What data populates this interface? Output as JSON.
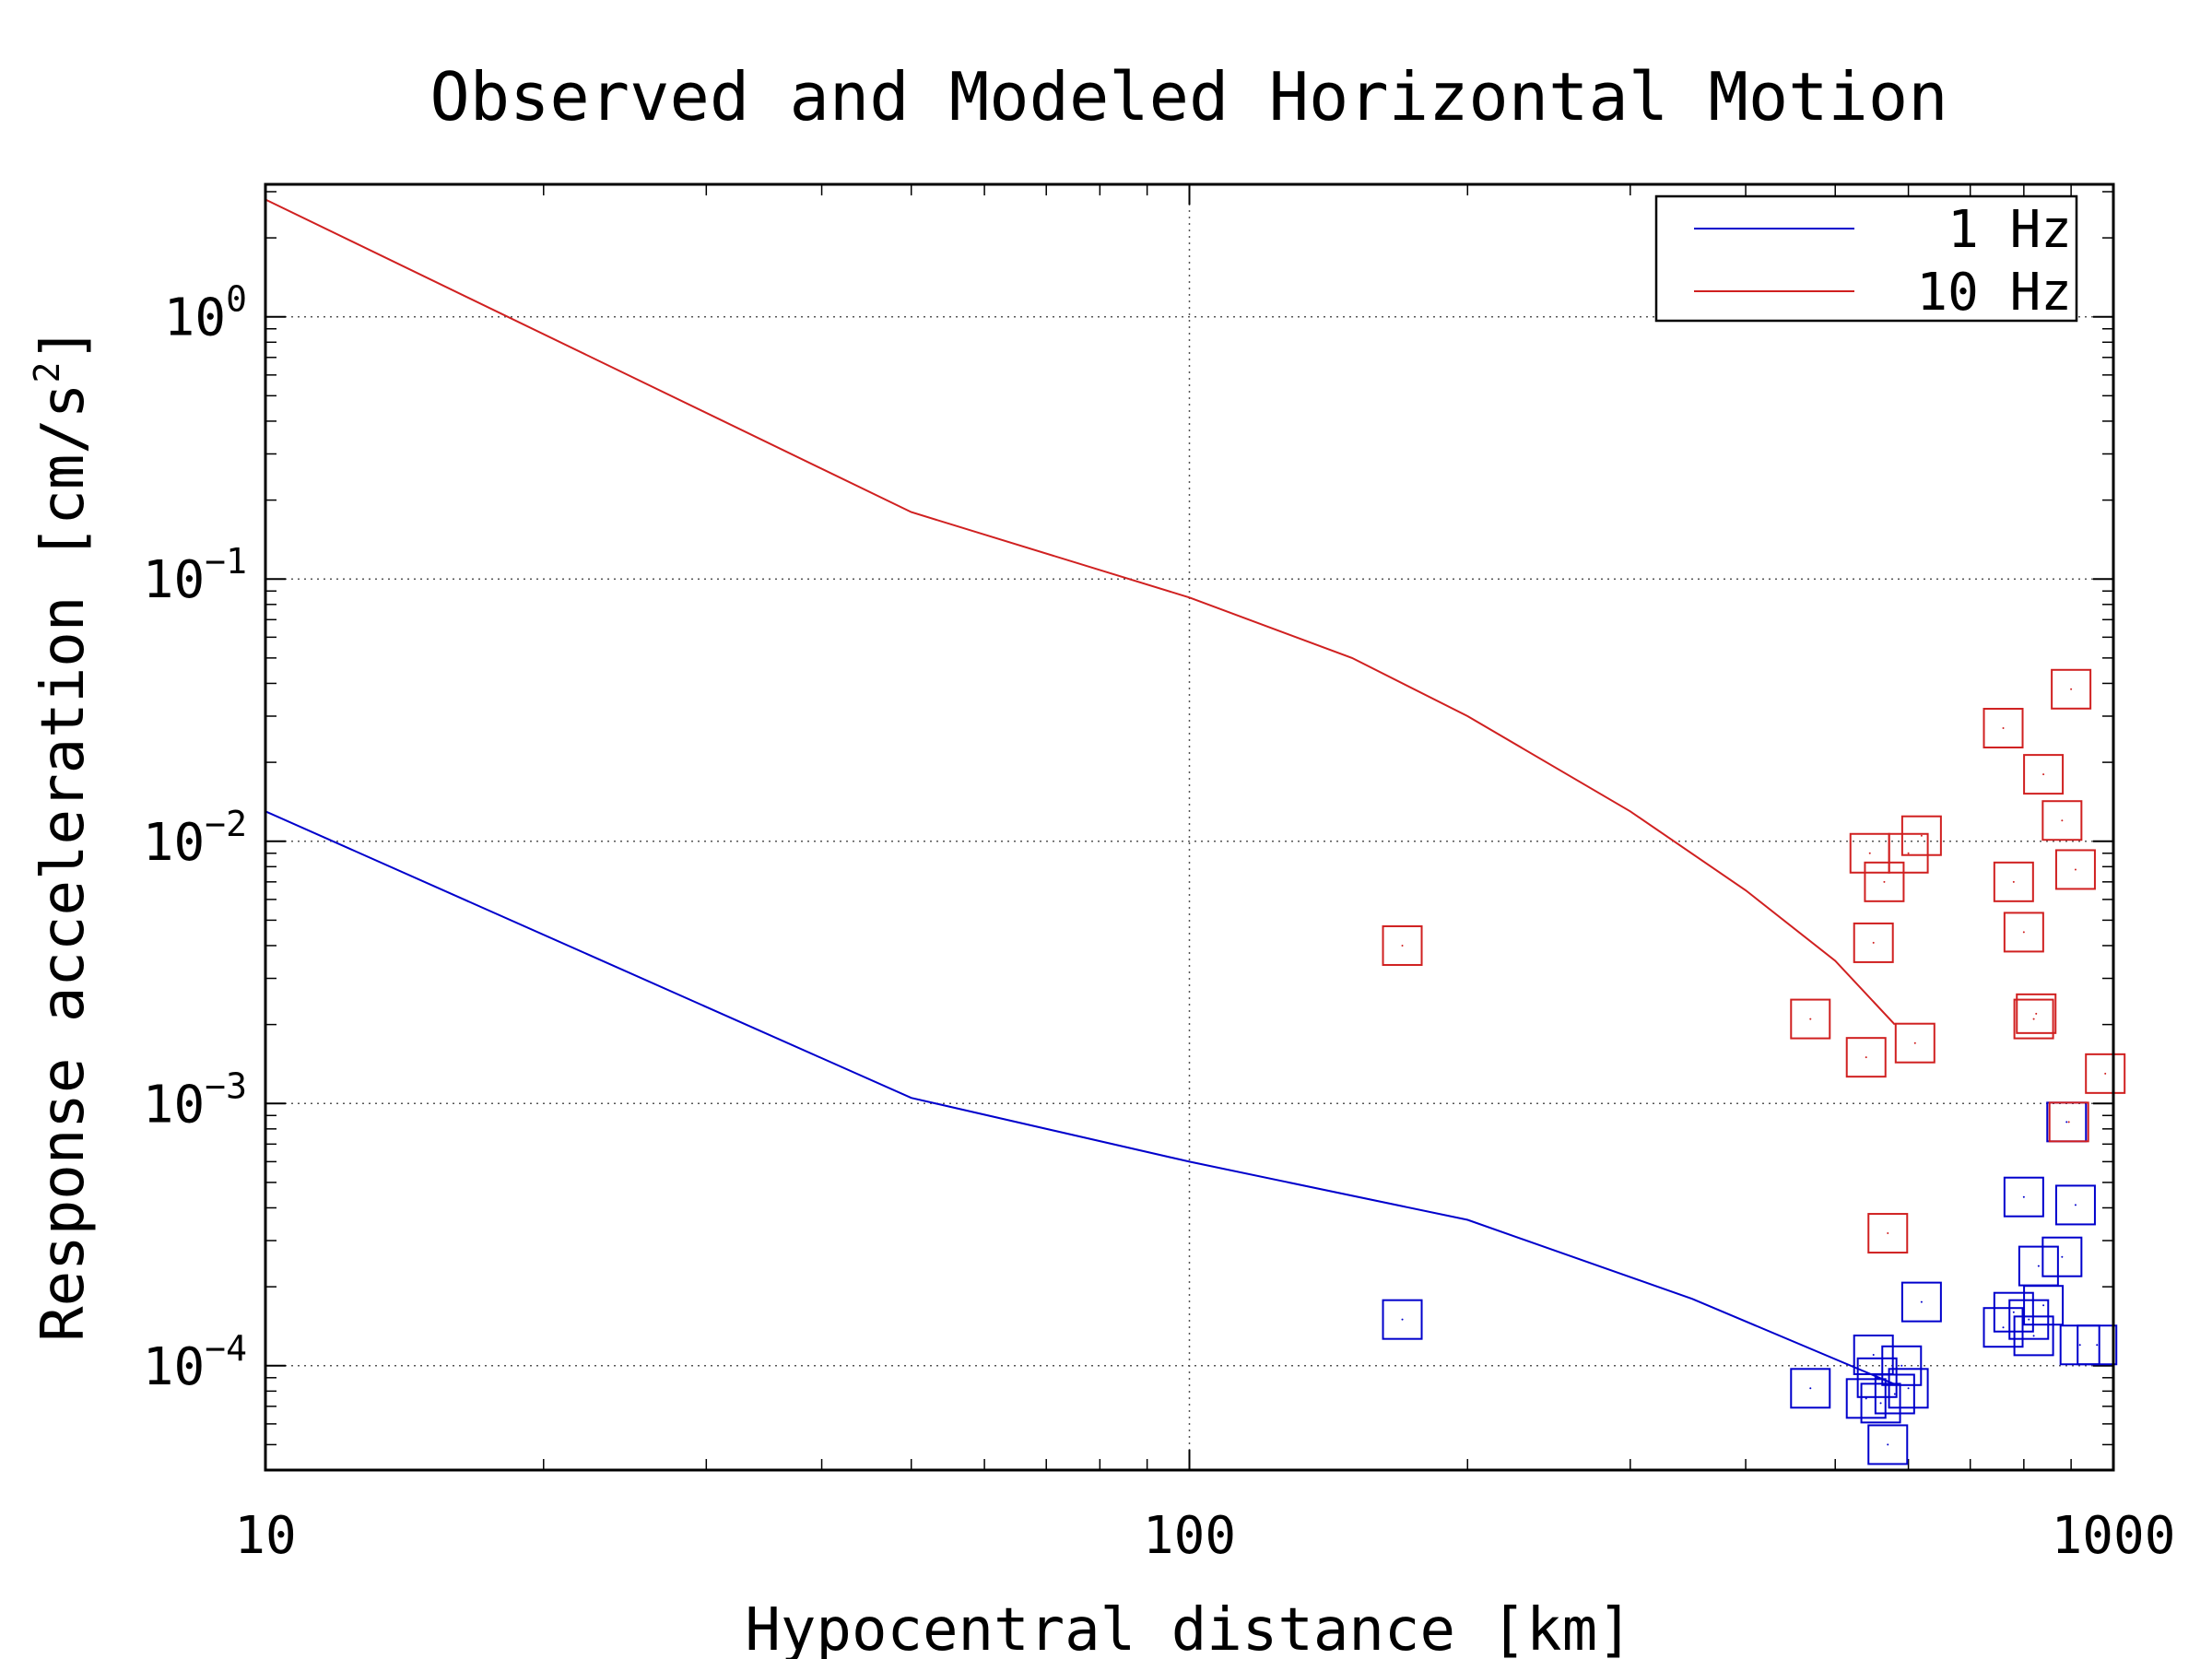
{
  "chart_data": {
    "type": "scatter",
    "title": "Observed and Modeled Horizontal Motion",
    "xlabel": "Hypocentral distance [km]",
    "ylabel_main": "Response acceleration [cm/s",
    "ylabel_sup": "2",
    "ylabel_end": "]",
    "x_scale": "log",
    "y_scale": "log",
    "xlim": [
      10,
      1000
    ],
    "ylim": [
      4e-05,
      3.2
    ],
    "grid": true,
    "legend_position": "top-right",
    "x_ticks": [
      {
        "value": 10,
        "label": "10"
      },
      {
        "value": 100,
        "label": "100"
      },
      {
        "value": 1000,
        "label": "1000"
      }
    ],
    "y_ticks": [
      {
        "value": 1,
        "base": "10",
        "exp": "0"
      },
      {
        "value": 0.1,
        "base": "10",
        "exp": "−1"
      },
      {
        "value": 0.01,
        "base": "10",
        "exp": "−2"
      },
      {
        "value": 0.001,
        "base": "10",
        "exp": "−3"
      },
      {
        "value": 0.0001,
        "base": "10",
        "exp": "−4"
      }
    ],
    "series": [
      {
        "name": "1 Hz",
        "color": "#0000cc",
        "model_line": [
          [
            10,
            0.013
          ],
          [
            50,
            0.00105
          ],
          [
            100,
            0.0006
          ],
          [
            200,
            0.00036
          ],
          [
            350,
            0.00018
          ],
          [
            580,
            8.5e-05
          ]
        ],
        "observed": [
          [
            170,
            0.00015
          ],
          [
            470,
            8.2e-05
          ],
          [
            540,
            7.5e-05
          ],
          [
            550,
            0.00011
          ],
          [
            555,
            9e-05
          ],
          [
            560,
            7.2e-05
          ],
          [
            570,
            5e-05
          ],
          [
            580,
            7.8e-05
          ],
          [
            590,
            0.0001
          ],
          [
            600,
            8.2e-05
          ],
          [
            620,
            0.000175
          ],
          [
            760,
            0.00014
          ],
          [
            780,
            0.00016
          ],
          [
            800,
            0.00044
          ],
          [
            810,
            0.00015
          ],
          [
            820,
            0.00013
          ],
          [
            830,
            0.00024
          ],
          [
            840,
            0.00017
          ],
          [
            880,
            0.00026
          ],
          [
            890,
            0.00085
          ],
          [
            910,
            0.00041
          ],
          [
            920,
            0.00012
          ],
          [
            960,
            0.00012
          ]
        ]
      },
      {
        "name": "10 Hz",
        "color": "#d02020",
        "model_line": [
          [
            10,
            2.8
          ],
          [
            50,
            0.18
          ],
          [
            100,
            0.085
          ],
          [
            150,
            0.05
          ],
          [
            200,
            0.03
          ],
          [
            300,
            0.013
          ],
          [
            400,
            0.0065
          ],
          [
            500,
            0.0035
          ],
          [
            580,
            0.002
          ]
        ],
        "observed": [
          [
            170,
            0.004
          ],
          [
            470,
            0.0021
          ],
          [
            540,
            0.0015
          ],
          [
            545,
            0.009
          ],
          [
            550,
            0.0041
          ],
          [
            565,
            0.007
          ],
          [
            570,
            0.00032
          ],
          [
            600,
            0.009
          ],
          [
            610,
            0.0017
          ],
          [
            620,
            0.0105
          ],
          [
            760,
            0.027
          ],
          [
            780,
            0.007
          ],
          [
            800,
            0.0045
          ],
          [
            820,
            0.0021
          ],
          [
            825,
            0.0022
          ],
          [
            840,
            0.018
          ],
          [
            880,
            0.012
          ],
          [
            895,
            0.00085
          ],
          [
            900,
            0.038
          ],
          [
            910,
            0.0078
          ],
          [
            980,
            0.0013
          ]
        ]
      }
    ]
  }
}
